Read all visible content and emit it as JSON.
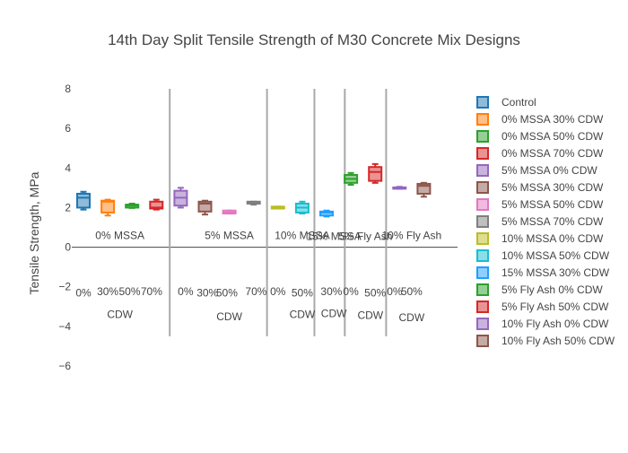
{
  "chart_data": {
    "type": "box",
    "title": "14th Day Split Tensile Strength of M30 Concrete Mix Designs",
    "ylabel": "Tensile Strength, MPa",
    "xlabel": "",
    "ylim": [
      -6.0,
      8.0
    ],
    "yticks": [
      8,
      6,
      4,
      2,
      0,
      -2,
      -4,
      -6
    ],
    "ytick_labels": [
      "8",
      "6",
      "4",
      "2",
      "0",
      "−2",
      "−4",
      "−6"
    ],
    "grid": false,
    "legend_position": "right",
    "series": [
      {
        "name": "Control",
        "color": "#1f77b4",
        "min": 1.9,
        "q1": 2.0,
        "median": 2.5,
        "q3": 2.7,
        "max": 2.8
      },
      {
        "name": "0% MSSA 30% CDW",
        "color": "#ff7f0e",
        "min": 1.6,
        "q1": 1.75,
        "median": 2.3,
        "q3": 2.35,
        "max": 2.4
      },
      {
        "name": "0% MSSA 50% CDW",
        "color": "#2ca02c",
        "min": 1.98,
        "q1": 2.0,
        "median": 2.1,
        "q3": 2.15,
        "max": 2.2
      },
      {
        "name": "0% MSSA 70% CDW",
        "color": "#d62728",
        "min": 1.9,
        "q1": 1.95,
        "median": 2.0,
        "q3": 2.3,
        "max": 2.4
      },
      {
        "name": "5% MSSA 0% CDW",
        "color": "#9467bd",
        "min": 2.0,
        "q1": 2.1,
        "median": 2.5,
        "q3": 2.85,
        "max": 3.0
      },
      {
        "name": "5% MSSA 30% CDW",
        "color": "#8c564b",
        "min": 1.65,
        "q1": 1.8,
        "median": 2.2,
        "q3": 2.3,
        "max": 2.35
      },
      {
        "name": "5% MSSA 50% CDW",
        "color": "#e377c2",
        "min": 1.7,
        "q1": 1.7,
        "median": 1.75,
        "q3": 1.85,
        "max": 1.85
      },
      {
        "name": "5% MSSA 70% CDW",
        "color": "#7f7f7f",
        "min": 2.15,
        "q1": 2.2,
        "median": 2.25,
        "q3": 2.3,
        "max": 2.3
      },
      {
        "name": "10% MSSA 0% CDW",
        "color": "#bcbd22",
        "min": 1.95,
        "q1": 1.95,
        "median": 2.0,
        "q3": 2.05,
        "max": 2.05
      },
      {
        "name": "10% MSSA 50% CDW",
        "color": "#17becf",
        "min": 1.7,
        "q1": 1.75,
        "median": 2.0,
        "q3": 2.2,
        "max": 2.3
      },
      {
        "name": "15% MSSA 30% CDW",
        "color": "#1f9fff",
        "min": 1.55,
        "q1": 1.6,
        "median": 1.75,
        "q3": 1.8,
        "max": 1.85
      },
      {
        "name": "5% Fly Ash 0% CDW",
        "color": "#2ca02c",
        "min": 3.15,
        "q1": 3.25,
        "median": 3.45,
        "q3": 3.65,
        "max": 3.75
      },
      {
        "name": "5% Fly Ash 50% CDW",
        "color": "#d62728",
        "min": 3.25,
        "q1": 3.35,
        "median": 3.8,
        "q3": 4.05,
        "max": 4.2
      },
      {
        "name": "10% Fly Ash 0% CDW",
        "color": "#9467bd",
        "min": 2.95,
        "q1": 2.98,
        "median": 3.0,
        "q3": 3.02,
        "max": 3.05
      },
      {
        "name": "10% Fly Ash 50% CDW",
        "color": "#8c564b",
        "min": 2.55,
        "q1": 2.7,
        "median": 3.1,
        "q3": 3.2,
        "max": 3.25
      }
    ],
    "annotations": [
      {
        "text": "0% MSSA",
        "x_box": 1.5,
        "y": 0.6
      },
      {
        "text": "5% MSSA",
        "x_box": 6.0,
        "y": 0.6
      },
      {
        "text": "10% MSSA",
        "x_box": 9.0,
        "y": 0.6
      },
      {
        "text": "15% MSSA",
        "x_box": 10.3,
        "y": 0.55
      },
      {
        "text": "5% Fly Ash",
        "x_box": 11.6,
        "y": 0.55
      },
      {
        "text": "10% Fly Ash",
        "x_box": 13.5,
        "y": 0.6
      },
      {
        "text": "0%",
        "x_box": 0.0,
        "y": -2.3
      },
      {
        "text": "30%",
        "x_box": 1.0,
        "y": -2.25
      },
      {
        "text": "50%",
        "x_box": 1.9,
        "y": -2.25
      },
      {
        "text": "70%",
        "x_box": 2.8,
        "y": -2.25
      },
      {
        "text": "0%",
        "x_box": 4.2,
        "y": -2.25
      },
      {
        "text": "30%",
        "x_box": 5.1,
        "y": -2.3
      },
      {
        "text": "50%",
        "x_box": 5.9,
        "y": -2.3
      },
      {
        "text": "70%",
        "x_box": 7.1,
        "y": -2.25
      },
      {
        "text": "0%",
        "x_box": 8.0,
        "y": -2.25
      },
      {
        "text": "50%",
        "x_box": 9.0,
        "y": -2.3
      },
      {
        "text": "30%",
        "x_box": 10.2,
        "y": -2.25
      },
      {
        "text": "0%",
        "x_box": 11.0,
        "y": -2.25
      },
      {
        "text": "50%",
        "x_box": 12.0,
        "y": -2.3
      },
      {
        "text": "0%",
        "x_box": 12.8,
        "y": -2.25
      },
      {
        "text": "50%",
        "x_box": 13.5,
        "y": -2.25
      },
      {
        "text": "CDW",
        "x_box": 1.5,
        "y": -3.4
      },
      {
        "text": "CDW",
        "x_box": 6.0,
        "y": -3.5
      },
      {
        "text": "CDW",
        "x_box": 9.0,
        "y": -3.4
      },
      {
        "text": "CDW",
        "x_box": 10.3,
        "y": -3.35
      },
      {
        "text": "CDW",
        "x_box": 11.8,
        "y": -3.45
      },
      {
        "text": "CDW",
        "x_box": 13.5,
        "y": -3.55
      }
    ],
    "separators_x_box": [
      3.55,
      7.55,
      9.5,
      10.75,
      12.45
    ]
  }
}
